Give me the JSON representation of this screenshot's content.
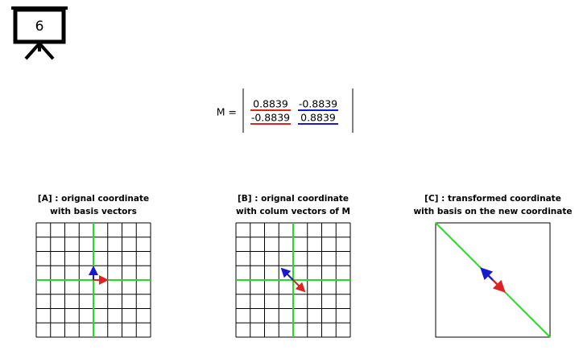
{
  "icon": {
    "label": "6"
  },
  "matrix": {
    "label": "M =",
    "rows": [
      [
        "0.8839",
        "-0.8839"
      ],
      [
        "-0.8839",
        "0.8839"
      ]
    ]
  },
  "panels": [
    {
      "title": [
        "[A] : orignal coordinate",
        "with basis vectors"
      ]
    },
    {
      "title": [
        "[B] : orignal coordinate",
        "with colum vectors of M"
      ]
    },
    {
      "title": [
        "[C] : transformed coordinate",
        "with basis on the new coordinate"
      ]
    }
  ]
}
